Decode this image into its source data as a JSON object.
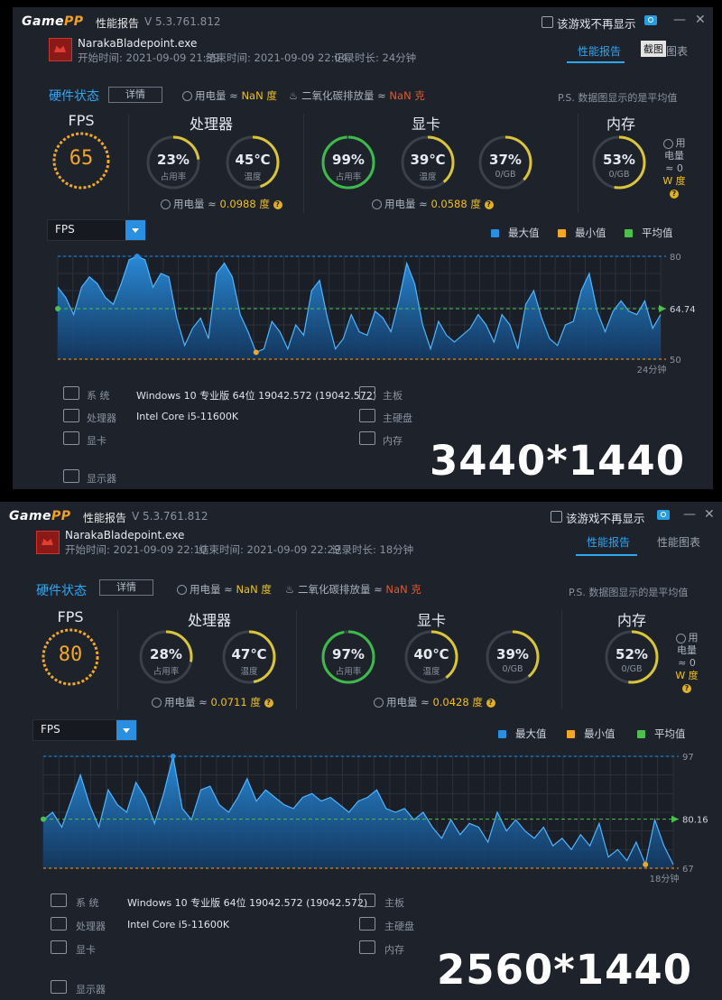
{
  "panels": [
    {
      "app": {
        "logo_a": "Game",
        "logo_b": "PP",
        "tab": "性能报告",
        "version": "V 5.3.761.812",
        "no_show_label": "该游戏不再显示",
        "min": "—",
        "close": "✕"
      },
      "process": {
        "name": "NarakaBladepoint.exe",
        "start": "开始时间: 2021-09-09 21:39",
        "end": "结束时间: 2021-09-09 22:04",
        "duration": "记录时长: 24分钟"
      },
      "tabs": {
        "report": "性能报告",
        "chart": "图表",
        "screenshot_tip": "截图"
      },
      "hw_state": {
        "label": "硬件状态",
        "detail": "详情",
        "power_prefix": "用电量 ≈ ",
        "power_value": "NaN 度",
        "co2_prefix": "二氧化碳排放量 ≈ ",
        "co2_value": "NaN 克",
        "ps": "P.S. 数据图显示的是平均值"
      },
      "fps": {
        "label": "FPS",
        "value": "65"
      },
      "cpu": {
        "title": "处理器",
        "usage": "23%",
        "usage_label": "占用率",
        "temp": "45℃",
        "temp_label": "温度",
        "power_prefix": "用电量 ≈ ",
        "power_value": "0.0988 度",
        "usage_frac": 0.23,
        "temp_frac": 0.45
      },
      "gpu": {
        "title": "显卡",
        "usage": "99%",
        "usage_label": "占用率",
        "temp": "39℃",
        "temp_label": "温度",
        "mem": "37%",
        "mem_label": "0/GB",
        "power_prefix": "用电量 ≈ ",
        "power_value": "0.0588 度",
        "usage_frac": 0.99,
        "temp_frac": 0.39,
        "mem_frac": 0.37
      },
      "mem": {
        "title": "内存",
        "value": "53%",
        "label": "0/GB",
        "note1": "用",
        "note2": "电量",
        "note3": "≈ 0",
        "note4": "W 度",
        "frac": 0.53
      },
      "dropdown": "FPS",
      "legend": {
        "max": "最大值",
        "min": "最小值",
        "avg": "平均值"
      },
      "chart": {
        "max_label": "80",
        "avg_label": "64.74",
        "min_label": "50",
        "duration": "24分钟"
      },
      "specs": {
        "sys_label": "系 统",
        "sys_value": "Windows 10 专业版 64位  19042.572 (19042.572)",
        "cpu_label": "处理器",
        "cpu_value": "Intel Core i5-11600K",
        "gpu_label": "显卡",
        "board_label": "主板",
        "disk_label": "主硬盘",
        "mem_label": "内存",
        "monitor_label": "显示器"
      },
      "resolution": "3440*1440"
    },
    {
      "app": {
        "logo_a": "Game",
        "logo_b": "PP",
        "tab": "性能报告",
        "version": "V 5.3.761.812",
        "no_show_label": "该游戏不再显示",
        "min": "—",
        "close": "✕"
      },
      "process": {
        "name": "NarakaBladepoint.exe",
        "start": "开始时间: 2021-09-09 22:10",
        "end": "结束时间: 2021-09-09 22:29",
        "duration": "记录时长: 18分钟"
      },
      "tabs": {
        "report": "性能报告",
        "chart": "性能图表"
      },
      "hw_state": {
        "label": "硬件状态",
        "detail": "详情",
        "power_prefix": "用电量 ≈ ",
        "power_value": "NaN 度",
        "co2_prefix": "二氧化碳排放量 ≈ ",
        "co2_value": "NaN 克",
        "ps": "P.S. 数据图显示的是平均值"
      },
      "fps": {
        "label": "FPS",
        "value": "80"
      },
      "cpu": {
        "title": "处理器",
        "usage": "28%",
        "usage_label": "占用率",
        "temp": "47℃",
        "temp_label": "温度",
        "power_prefix": "用电量 ≈ ",
        "power_value": "0.0711 度",
        "usage_frac": 0.28,
        "temp_frac": 0.47
      },
      "gpu": {
        "title": "显卡",
        "usage": "97%",
        "usage_label": "占用率",
        "temp": "40℃",
        "temp_label": "温度",
        "mem": "39%",
        "mem_label": "0/GB",
        "power_prefix": "用电量 ≈ ",
        "power_value": "0.0428 度",
        "usage_frac": 0.97,
        "temp_frac": 0.4,
        "mem_frac": 0.39
      },
      "mem": {
        "title": "内存",
        "value": "52%",
        "label": "0/GB",
        "note1": "用",
        "note2": "电量",
        "note3": "≈ 0",
        "note4": "W 度",
        "frac": 0.52
      },
      "dropdown": "FPS",
      "legend": {
        "max": "最大值",
        "min": "最小值",
        "avg": "平均值"
      },
      "chart": {
        "max_label": "97",
        "avg_label": "80.16",
        "min_label": "67",
        "duration": "18分钟"
      },
      "specs": {
        "sys_label": "系 统",
        "sys_value": "Windows 10 专业版 64位  19042.572 (19042.572)",
        "cpu_label": "处理器",
        "cpu_value": "Intel Core i5-11600K",
        "gpu_label": "显卡",
        "board_label": "主板",
        "disk_label": "主硬盘",
        "mem_label": "内存",
        "monitor_label": "显示器"
      },
      "resolution": "2560*1440"
    }
  ],
  "colors": {
    "accent": "#2fa6f0",
    "fps_orange": "#f2a727",
    "gauge_green": "#3dbb4a",
    "gauge_yellow": "#d9c43a",
    "avg_green": "#4cbf4c",
    "min_orange": "#f2a727",
    "max_blue": "#2a8fe0"
  },
  "chart_data": [
    {
      "type": "area",
      "title": "FPS",
      "ylim": [
        50,
        80
      ],
      "max": 80,
      "min": 50,
      "avg": 64.74,
      "duration": "24分钟",
      "values": [
        71,
        68,
        63,
        71,
        74,
        72,
        68,
        66,
        72,
        79,
        80,
        79,
        71,
        75,
        74,
        62,
        54,
        59,
        62,
        56,
        75,
        78,
        74,
        63,
        58,
        52,
        53,
        61,
        58,
        53,
        60,
        57,
        70,
        73,
        62,
        53,
        56,
        63,
        58,
        57,
        64,
        62,
        58,
        67,
        78,
        72,
        60,
        53,
        61,
        57,
        55,
        57,
        59,
        63,
        60,
        55,
        63,
        60,
        53,
        66,
        70,
        62,
        56,
        54,
        60,
        61,
        70,
        75,
        64,
        58,
        64,
        67,
        64,
        63,
        67,
        59,
        63
      ]
    },
    {
      "type": "area",
      "title": "FPS",
      "ylim": [
        67,
        97
      ],
      "max": 97,
      "min": 67,
      "avg": 80.16,
      "duration": "18分钟",
      "values": [
        80,
        82,
        78,
        85,
        92,
        84,
        78,
        88,
        84,
        82,
        90,
        86,
        79,
        87,
        97,
        83,
        80,
        88,
        89,
        84,
        82,
        86,
        91,
        85,
        88,
        86,
        84,
        83,
        86,
        87,
        85,
        86,
        84,
        82,
        85,
        86,
        88,
        83,
        82,
        83,
        80,
        82,
        78,
        75,
        80,
        76,
        79,
        78,
        74,
        82,
        77,
        80,
        77,
        75,
        78,
        73,
        75,
        72,
        76,
        73,
        79,
        70,
        72,
        69,
        74,
        68,
        80,
        73,
        68
      ]
    }
  ]
}
